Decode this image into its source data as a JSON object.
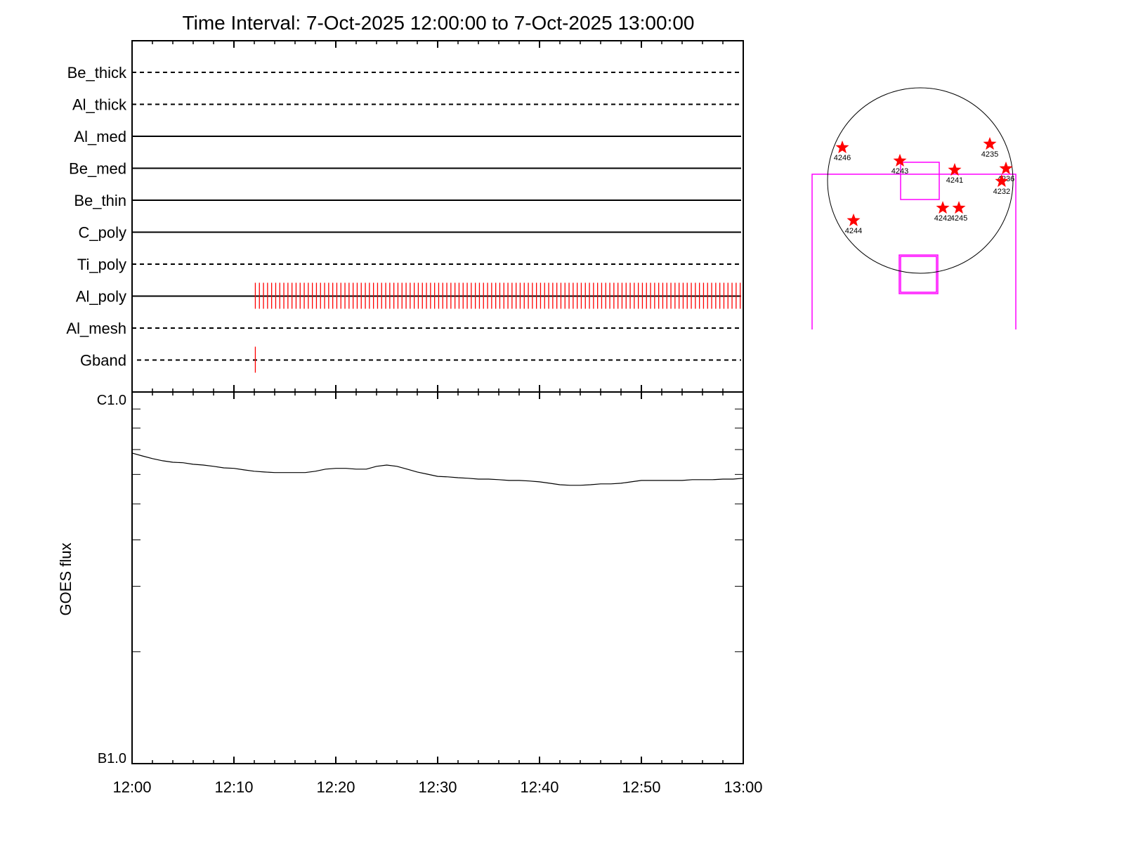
{
  "chart_data": [
    {
      "type": "timeline",
      "title": "Time Interval:  7-Oct-2025 12:00:00 to  7-Oct-2025 13:00:00",
      "filters": [
        {
          "name": "Be_thick",
          "linestyle": "dashed"
        },
        {
          "name": "Al_thick",
          "linestyle": "dashed"
        },
        {
          "name": "Al_med",
          "linestyle": "solid"
        },
        {
          "name": "Be_med",
          "linestyle": "solid"
        },
        {
          "name": "Be_thin",
          "linestyle": "solid"
        },
        {
          "name": "C_poly",
          "linestyle": "solid"
        },
        {
          "name": "Ti_poly",
          "linestyle": "dashed"
        },
        {
          "name": "Al_poly",
          "linestyle": "solid",
          "color": "#ff0000",
          "x": [
            12.1,
            12.5,
            12.9,
            13.3,
            13.7,
            14.1,
            14.5,
            14.9,
            15.3,
            15.7,
            16.1,
            16.5,
            16.9,
            17.3,
            17.7,
            18.1,
            18.5,
            18.9,
            19.3,
            19.7,
            20.1,
            20.5,
            20.9,
            21.3,
            21.7,
            22.1,
            22.5,
            22.9,
            23.3,
            23.7,
            24.1,
            24.5,
            24.9,
            25.3,
            25.7,
            26.1,
            26.5,
            26.9,
            27.3,
            27.7,
            28.1,
            28.5,
            28.9,
            29.3,
            29.7,
            30.1,
            30.5,
            30.9,
            31.3,
            31.7,
            32.1,
            32.5,
            32.9,
            33.3,
            33.7,
            34.1,
            34.5,
            34.9,
            35.3,
            35.7,
            36.1,
            36.5,
            36.9,
            37.3,
            37.7,
            38.1,
            38.5,
            38.9,
            39.3,
            39.7,
            40.1,
            40.5,
            40.9,
            41.3,
            41.7,
            42.1,
            42.5,
            42.9,
            43.3,
            43.7,
            44.1,
            44.5,
            44.9,
            45.3,
            45.7,
            46.1,
            46.5,
            46.9,
            47.3,
            47.7,
            48.1,
            48.5,
            48.9,
            49.3,
            49.7,
            50.1,
            50.5,
            50.9,
            51.3,
            51.7,
            52.1,
            52.5,
            52.9,
            53.3,
            53.7,
            54.1,
            54.5,
            54.9,
            55.3,
            55.7,
            56.1,
            56.5,
            56.9,
            57.3,
            57.7,
            58.1,
            58.5,
            58.9,
            59.3,
            59.7
          ]
        },
        {
          "name": "Al_mesh",
          "linestyle": "dashed"
        },
        {
          "name": "Gband",
          "linestyle": "dashed",
          "color": "#ff0000",
          "x": [
            12.1
          ]
        }
      ]
    },
    {
      "type": "line",
      "ylabel": "GOES flux",
      "color": "#000000",
      "log_y": true,
      "x": [
        0,
        1,
        2,
        3,
        4,
        5,
        6,
        7,
        8,
        9,
        10,
        11,
        12,
        13,
        14,
        15,
        16,
        17,
        18,
        19,
        20,
        21,
        22,
        23,
        24,
        25,
        26,
        27,
        28,
        29,
        30,
        31,
        32,
        33,
        34,
        35,
        36,
        37,
        38,
        39,
        40,
        41,
        42,
        43,
        44,
        45,
        46,
        47,
        48,
        49,
        50,
        51,
        52,
        53,
        54,
        55,
        56,
        57,
        58,
        59,
        60
      ],
      "values": [
        6.85e-07,
        6.73e-07,
        6.62e-07,
        6.53e-07,
        6.47e-07,
        6.45e-07,
        6.39e-07,
        6.36e-07,
        6.31e-07,
        6.25e-07,
        6.23e-07,
        6.17e-07,
        6.12e-07,
        6.09e-07,
        6.07e-07,
        6.07e-07,
        6.07e-07,
        6.07e-07,
        6.12e-07,
        6.2e-07,
        6.23e-07,
        6.23e-07,
        6.2e-07,
        6.2e-07,
        6.31e-07,
        6.36e-07,
        6.31e-07,
        6.2e-07,
        6.09e-07,
        6.01e-07,
        5.93e-07,
        5.91e-07,
        5.88e-07,
        5.86e-07,
        5.83e-07,
        5.83e-07,
        5.81e-07,
        5.78e-07,
        5.78e-07,
        5.76e-07,
        5.73e-07,
        5.68e-07,
        5.63e-07,
        5.61e-07,
        5.61e-07,
        5.63e-07,
        5.66e-07,
        5.66e-07,
        5.68e-07,
        5.73e-07,
        5.78e-07,
        5.78e-07,
        5.78e-07,
        5.78e-07,
        5.78e-07,
        5.81e-07,
        5.81e-07,
        5.81e-07,
        5.83e-07,
        5.83e-07,
        5.86e-07
      ],
      "xlim": [
        0,
        60
      ],
      "xticks": [
        {
          "value": 0,
          "label": "12:00"
        },
        {
          "value": 10,
          "label": "12:10"
        },
        {
          "value": 20,
          "label": "12:20"
        },
        {
          "value": 30,
          "label": "12:30"
        },
        {
          "value": 40,
          "label": "12:40"
        },
        {
          "value": 50,
          "label": "12:50"
        },
        {
          "value": 60,
          "label": "13:00"
        }
      ],
      "xminorticks": [
        2,
        4,
        6,
        8,
        12,
        14,
        16,
        18,
        22,
        24,
        26,
        28,
        32,
        34,
        36,
        38,
        42,
        44,
        46,
        48,
        52,
        54,
        56,
        58
      ],
      "ylim": [
        1e-07,
        1e-06
      ],
      "yticks": [
        {
          "value": 1e-07,
          "label": "B1.0"
        },
        {
          "value": 1e-06,
          "label": "C1.0"
        }
      ],
      "yminorticks": [
        2e-07,
        3e-07,
        4e-07,
        5e-07,
        6e-07,
        7e-07,
        8e-07,
        9e-07
      ]
    },
    {
      "type": "scatter",
      "color": "#ff0000",
      "labels": [
        "4246",
        "4243",
        "4241",
        "4235",
        "4236",
        "4232",
        "4244",
        "4242",
        "4245"
      ],
      "x": [
        -807,
        -211,
        356,
        720,
        887,
        843,
        -691,
        233,
        400
      ],
      "y": [
        342,
        204,
        109,
        378,
        124,
        -7,
        -414,
        -284,
        -284
      ],
      "xlim": [
        -960,
        960
      ],
      "ylim": [
        -960,
        960
      ]
    }
  ]
}
